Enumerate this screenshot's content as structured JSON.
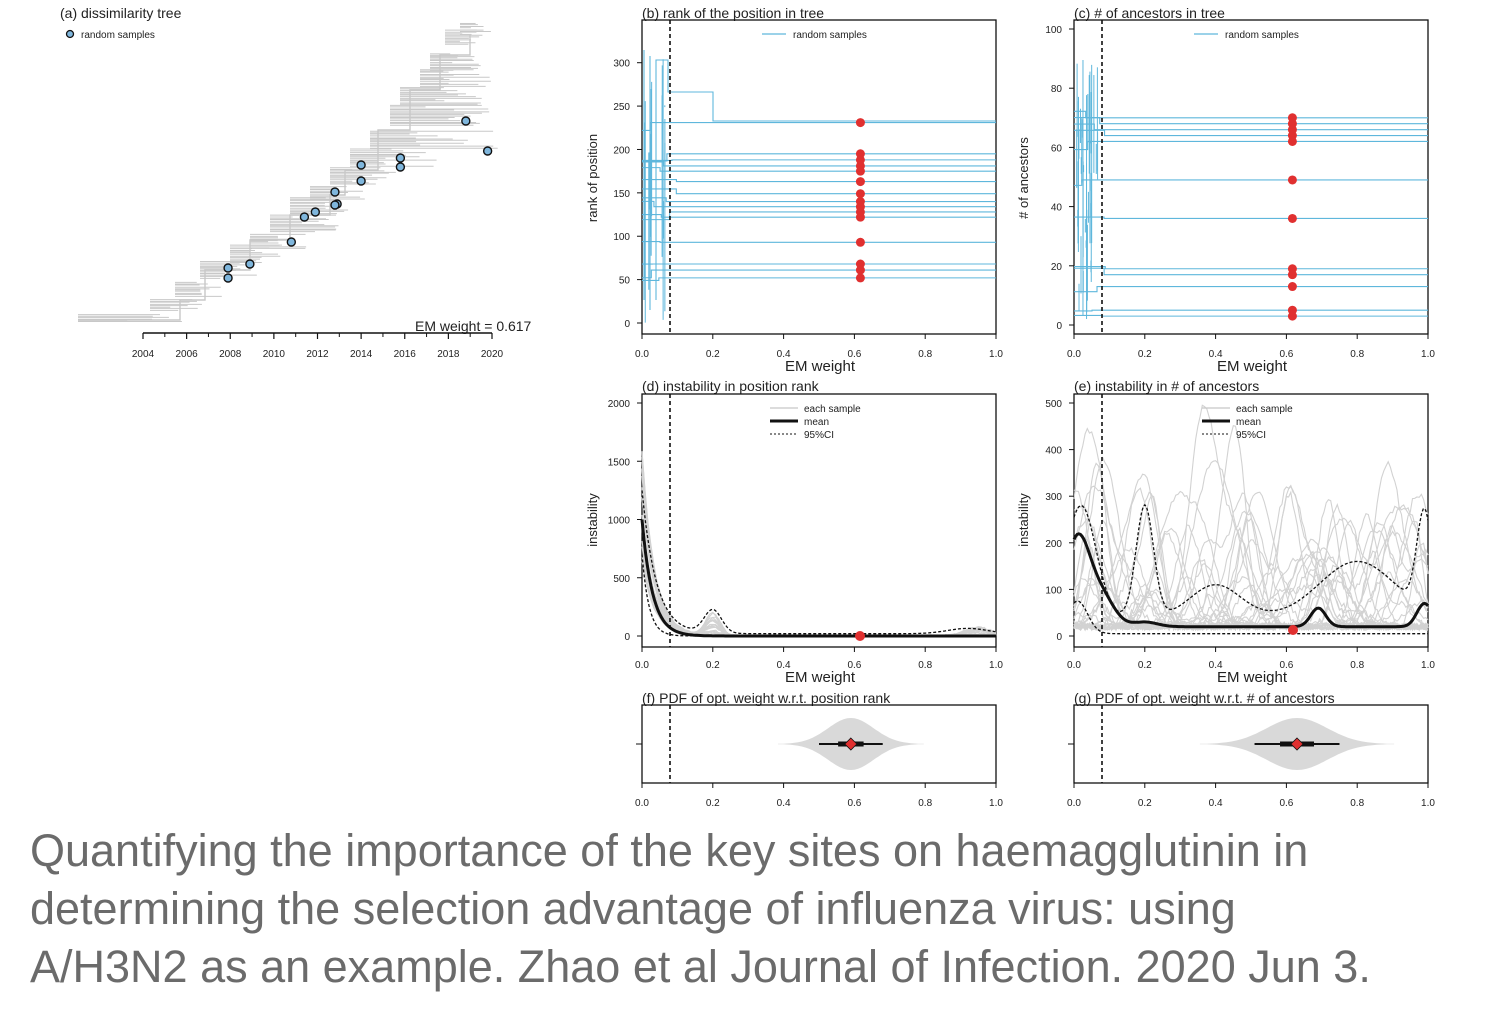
{
  "caption": {
    "line1": "Quantifying the importance of the key sites on haemagglutinin in",
    "line2": "determining the selection advantage of influenza virus: using",
    "line3": "A/H3N2 as an example. Zhao et al Journal of Infection. 2020 Jun 3."
  },
  "colors": {
    "tree": "#c8c8c8",
    "sample_fill": "#7fb6dc",
    "sample_line": "#5fb7dc",
    "dot": "#e03030",
    "gray": "#d2d2d2",
    "black": "#111111"
  },
  "chart_data": [
    {
      "id": "a",
      "type": "tree",
      "title": "(a) dissimilarity tree",
      "legend": [
        "random samples"
      ],
      "annotation": "EM weight = 0.617",
      "xticks": [
        "2004",
        "2006",
        "2008",
        "2010",
        "2012",
        "2014",
        "2016",
        "2018",
        "2020"
      ],
      "samples_year": [
        2007.9,
        2007.9,
        2008.9,
        2010.8,
        2011.4,
        2011.9,
        2012.8,
        2012.9,
        2012.8,
        2014.0,
        2014.0,
        2015.8,
        2015.8,
        2018.8,
        2019.8
      ]
    },
    {
      "id": "b",
      "type": "line",
      "title": "(b) rank of the position in tree",
      "xlabel": "EM weight",
      "ylabel": "rank of position",
      "xlim": [
        0,
        1
      ],
      "ylim": [
        0,
        340
      ],
      "xticks": [
        "0.0",
        "0.2",
        "0.4",
        "0.6",
        "0.8",
        "1.0"
      ],
      "yticks": [
        "0",
        "50",
        "100",
        "150",
        "200",
        "250",
        "300"
      ],
      "legend": [
        "random samples"
      ],
      "vline": 0.078,
      "optimal_weight": 0.617,
      "points": [
        231,
        195,
        188,
        181,
        175,
        163,
        149,
        140,
        134,
        128,
        122,
        93,
        68,
        61,
        52
      ]
    },
    {
      "id": "c",
      "type": "line",
      "title": "(c) # of ancestors in tree",
      "xlabel": "EM weight",
      "ylabel": "# of ancestors",
      "xlim": [
        0,
        1
      ],
      "ylim": [
        0,
        100
      ],
      "xticks": [
        "0.0",
        "0.2",
        "0.4",
        "0.6",
        "0.8",
        "1.0"
      ],
      "yticks": [
        "0",
        "20",
        "40",
        "60",
        "80",
        "100"
      ],
      "legend": [
        "random samples"
      ],
      "vline": 0.078,
      "optimal_weight": 0.617,
      "points": [
        70,
        68,
        66,
        64,
        62,
        49,
        36,
        19,
        17,
        13,
        5,
        3
      ]
    },
    {
      "id": "d",
      "type": "line",
      "title": "(d) instability in position rank",
      "xlabel": "EM weight",
      "ylabel": "instability",
      "xlim": [
        0,
        1
      ],
      "ylim": [
        0,
        2000
      ],
      "xticks": [
        "0.0",
        "0.2",
        "0.4",
        "0.6",
        "0.8",
        "1.0"
      ],
      "yticks": [
        "0",
        "500",
        "1000",
        "1500",
        "2000"
      ],
      "legend": [
        "each sample",
        "mean",
        "95%CI"
      ],
      "vline": 0.078,
      "optimal": {
        "x": 0.617,
        "y": 0
      }
    },
    {
      "id": "e",
      "type": "line",
      "title": "(e) instability in # of ancestors",
      "xlabel": "EM weight",
      "ylabel": "instability",
      "xlim": [
        0,
        1
      ],
      "ylim": [
        0,
        500
      ],
      "xticks": [
        "0.0",
        "0.2",
        "0.4",
        "0.6",
        "0.8",
        "1.0"
      ],
      "yticks": [
        "0",
        "100",
        "200",
        "300",
        "400",
        "500"
      ],
      "legend": [
        "each sample",
        "mean",
        "95%CI"
      ],
      "vline": 0.078,
      "optimal": {
        "x": 0.617,
        "y": 12
      }
    },
    {
      "id": "f",
      "type": "violin",
      "title": "(f) PDF of opt. weight w.r.t. position rank",
      "xlim": [
        0,
        1
      ],
      "xticks": [
        "0.0",
        "0.2",
        "0.4",
        "0.6",
        "0.8",
        "1.0"
      ],
      "vline": 0.078,
      "median": 0.59,
      "ci": [
        0.5,
        0.68
      ]
    },
    {
      "id": "g",
      "type": "violin",
      "title": "(g) PDF of opt. weight w.r.t. # of ancestors",
      "xlim": [
        0,
        1
      ],
      "xticks": [
        "0.0",
        "0.2",
        "0.4",
        "0.6",
        "0.8",
        "1.0"
      ],
      "vline": 0.078,
      "median": 0.63,
      "ci": [
        0.51,
        0.75
      ]
    }
  ]
}
